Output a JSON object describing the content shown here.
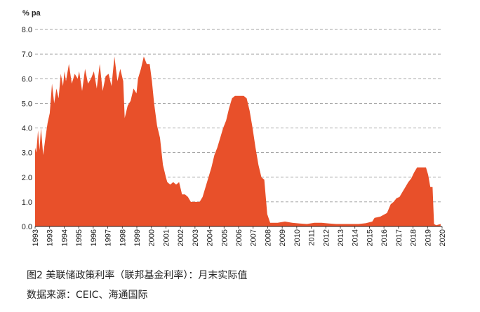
{
  "figure": {
    "title": "图2 美联储政策利率（联邦基金利率）：月末实际值",
    "source": "数据来源：CEIC、海通国际"
  },
  "colors": {
    "area": "#E8502A",
    "grid": "#888888",
    "axis": "#222222"
  },
  "chart_data": {
    "type": "area",
    "title": "",
    "xlabel": "",
    "ylabel": "% pa",
    "ylim": [
      0,
      8
    ],
    "yticks": [
      "0.0",
      "1.0",
      "2.0",
      "3.0",
      "4.0",
      "5.0",
      "6.0",
      "7.0",
      "8.0"
    ],
    "xticks": [
      "1993",
      "1993",
      "1994",
      "1995",
      "1996",
      "1997",
      "1998",
      "1999",
      "2000",
      "2001",
      "2002",
      "2003",
      "2004",
      "2005",
      "2006",
      "2007",
      "2008",
      "2009",
      "2010",
      "2011",
      "2012",
      "2013",
      "2014",
      "2015",
      "2016",
      "2017",
      "2018",
      "2019",
      "2020"
    ],
    "grid": "horizontal dashed",
    "series": [
      {
        "x": [
          1993.0,
          1993.08,
          1993.2,
          1993.3,
          1993.4,
          1993.55,
          1993.7,
          1993.85,
          1994.0,
          1994.15,
          1994.3,
          1994.45,
          1994.6,
          1994.75,
          1994.9,
          1995.0,
          1995.1,
          1995.3,
          1995.5,
          1995.7,
          1995.9,
          1996.0,
          1996.2,
          1996.4,
          1996.6,
          1996.8,
          1997.0,
          1997.2,
          1997.4,
          1997.6,
          1997.8,
          1998.0,
          1998.2,
          1998.4,
          1998.6,
          1998.8,
          1999.0,
          1999.1,
          1999.3,
          1999.5,
          1999.7,
          1999.9,
          2000.0,
          2000.2,
          2000.4,
          2000.6,
          2000.8,
          2000.95,
          2001.1,
          2001.3,
          2001.5,
          2001.7,
          2001.9,
          2002.0,
          2002.2,
          2002.4,
          2002.6,
          2002.8,
          2003.0,
          2003.2,
          2003.4,
          2003.6,
          2003.8,
          2004.0,
          2004.2,
          2004.4,
          2004.6,
          2004.8,
          2005.0,
          2005.2,
          2005.4,
          2005.6,
          2005.8,
          2006.0,
          2006.2,
          2006.4,
          2006.6,
          2006.8,
          2007.0,
          2007.2,
          2007.4,
          2007.6,
          2007.8,
          2008.0,
          2008.2,
          2008.4,
          2008.6,
          2008.8,
          2009.0,
          2009.5,
          2010.0,
          2010.5,
          2011.0,
          2011.5,
          2012.0,
          2012.5,
          2013.0,
          2013.5,
          2014.0,
          2014.5,
          2015.0,
          2015.5,
          2015.95,
          2016.1,
          2016.5,
          2016.95,
          2017.2,
          2017.4,
          2017.6,
          2017.8,
          2018.0,
          2018.2,
          2018.4,
          2018.6,
          2018.8,
          2019.0,
          2019.2,
          2019.4,
          2019.6,
          2019.75,
          2019.9,
          2020.05,
          2020.15,
          2020.3,
          2020.6
        ],
        "y": [
          3.2,
          3.0,
          3.9,
          3.1,
          4.0,
          2.9,
          3.6,
          4.2,
          4.6,
          5.8,
          5.0,
          5.6,
          5.2,
          6.2,
          5.7,
          6.3,
          5.9,
          6.6,
          5.8,
          6.2,
          6.0,
          6.3,
          5.5,
          6.4,
          5.8,
          6.0,
          6.3,
          5.6,
          6.6,
          5.5,
          6.1,
          6.2,
          5.7,
          6.9,
          5.9,
          6.4,
          5.9,
          4.4,
          4.9,
          5.1,
          5.6,
          5.4,
          6.0,
          6.4,
          6.9,
          6.6,
          6.6,
          5.9,
          5.0,
          4.1,
          3.6,
          2.5,
          2.0,
          1.8,
          1.7,
          1.8,
          1.7,
          1.8,
          1.3,
          1.3,
          1.2,
          1.0,
          1.0,
          1.0,
          1.0,
          1.2,
          1.6,
          2.0,
          2.4,
          2.9,
          3.2,
          3.6,
          4.0,
          4.3,
          4.8,
          5.2,
          5.3,
          5.3,
          5.3,
          5.3,
          5.2,
          4.7,
          4.0,
          3.2,
          2.5,
          2.0,
          1.9,
          0.5,
          0.15,
          0.15,
          0.2,
          0.15,
          0.12,
          0.1,
          0.15,
          0.15,
          0.12,
          0.1,
          0.1,
          0.1,
          0.1,
          0.13,
          0.2,
          0.35,
          0.4,
          0.55,
          0.9,
          1.0,
          1.15,
          1.2,
          1.4,
          1.6,
          1.8,
          1.95,
          2.2,
          2.4,
          2.4,
          2.4,
          2.4,
          2.1,
          1.6,
          1.6,
          0.1,
          0.05,
          0.1
        ]
      }
    ]
  }
}
